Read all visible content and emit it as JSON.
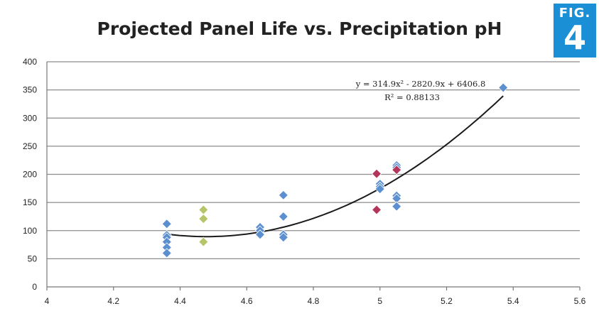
{
  "figure_badge": {
    "label": "FIG.",
    "number": "4"
  },
  "colors": {
    "blue_marker": "#5b8fcf",
    "red_marker": "#b3365a",
    "green_marker": "#b6c46a",
    "trendline": "#1a1a1a",
    "gridline": "#8c8c8c",
    "badge": "#1a8fd6"
  },
  "chart_data": {
    "type": "scatter",
    "title": "Projected Panel Life vs. Precipitation pH",
    "xlabel": "",
    "ylabel": "",
    "xlim": [
      4,
      5.6
    ],
    "ylim": [
      0,
      400
    ],
    "x_ticks": [
      "4",
      "4.2",
      "4.4",
      "4.6",
      "4.8",
      "5",
      "5.2",
      "5.4",
      "5.6"
    ],
    "y_ticks": [
      "0",
      "50",
      "100",
      "150",
      "200",
      "250",
      "300",
      "350",
      "400"
    ],
    "grid": {
      "horizontal": true,
      "vertical": false
    },
    "legend": "none",
    "series": [
      {
        "color": "#5b8fcf",
        "points": [
          {
            "x": 4.36,
            "y": 112
          },
          {
            "x": 4.36,
            "y": 92
          },
          {
            "x": 4.36,
            "y": 88
          },
          {
            "x": 4.36,
            "y": 80
          },
          {
            "x": 4.36,
            "y": 70
          },
          {
            "x": 4.36,
            "y": 60
          },
          {
            "x": 4.64,
            "y": 106
          },
          {
            "x": 4.64,
            "y": 100
          },
          {
            "x": 4.64,
            "y": 93
          },
          {
            "x": 4.71,
            "y": 163
          },
          {
            "x": 4.71,
            "y": 125
          },
          {
            "x": 4.71,
            "y": 93
          },
          {
            "x": 4.71,
            "y": 88
          },
          {
            "x": 5.0,
            "y": 183
          },
          {
            "x": 5.0,
            "y": 178
          },
          {
            "x": 5.0,
            "y": 174
          },
          {
            "x": 5.05,
            "y": 216
          },
          {
            "x": 5.05,
            "y": 212
          },
          {
            "x": 5.05,
            "y": 162
          },
          {
            "x": 5.05,
            "y": 157
          },
          {
            "x": 5.05,
            "y": 143
          },
          {
            "x": 5.37,
            "y": 354
          }
        ]
      },
      {
        "color": "#b3365a",
        "points": [
          {
            "x": 4.99,
            "y": 201
          },
          {
            "x": 4.99,
            "y": 137
          },
          {
            "x": 5.05,
            "y": 208
          }
        ]
      },
      {
        "color": "#b6c46a",
        "points": [
          {
            "x": 4.47,
            "y": 137
          },
          {
            "x": 4.47,
            "y": 121
          },
          {
            "x": 4.47,
            "y": 80
          }
        ]
      }
    ],
    "trendline": {
      "type": "polynomial",
      "coefficients": [
        314.9,
        -2820.9,
        6406.8
      ],
      "x_range": [
        4.36,
        5.37
      ],
      "equation_label": "y = 314.9x² - 2820.9x + 6406.8",
      "r2_label": "R² = 0.88133"
    }
  }
}
